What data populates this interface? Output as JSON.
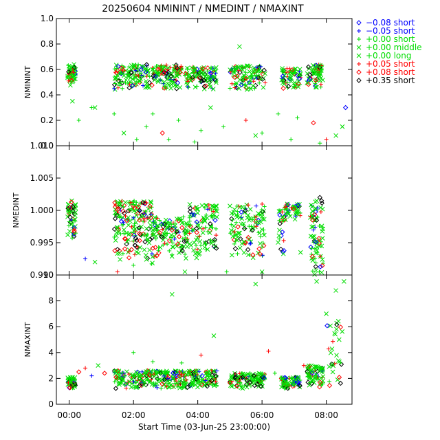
{
  "chart_data": {
    "type": "scatter",
    "title": "20250604 NMININT / NMEDINT / NMAXINT",
    "xlabel": "Start Time (03-Jun-25 23:00:00)",
    "x_unit": "hours relative to 23:00:00 on 03-Jun-25",
    "xlim": [
      -0.4,
      8.8
    ],
    "xticks": [
      {
        "x": 0,
        "label": "00:00"
      },
      {
        "x": 2,
        "label": "02:00"
      },
      {
        "x": 4,
        "label": "04:00"
      },
      {
        "x": 6,
        "label": "06:00"
      },
      {
        "x": 8,
        "label": "08:00"
      }
    ],
    "legend_position": "right",
    "series": [
      {
        "name": "−0.08 short",
        "color": "#0000ff",
        "symbol": "diamond"
      },
      {
        "name": "−0.05 short",
        "color": "#0000ff",
        "symbol": "plus"
      },
      {
        "name": "+0.00 short",
        "color": "#00dd00",
        "symbol": "plus"
      },
      {
        "name": "+0.00 middle",
        "color": "#00dd00",
        "symbol": "cross"
      },
      {
        "name": "+0.00 long",
        "color": "#00dd00",
        "symbol": "cross"
      },
      {
        "name": "+0.05 short",
        "color": "#ff0000",
        "symbol": "plus"
      },
      {
        "name": "+0.08 short",
        "color": "#ff0000",
        "symbol": "diamond"
      },
      {
        "name": "+0.35 short",
        "color": "#000000",
        "symbol": "diamond"
      }
    ],
    "panels": [
      {
        "ylabel": "NMININT",
        "ylim": [
          0.0,
          1.0
        ],
        "yticks": [
          {
            "v": 0.0,
            "label": "0.0"
          },
          {
            "v": 0.2,
            "label": "0.2"
          },
          {
            "v": 0.4,
            "label": "0.4"
          },
          {
            "v": 0.6,
            "label": "0.6"
          },
          {
            "v": 0.8,
            "label": "0.8"
          },
          {
            "v": 1.0,
            "label": "1.0"
          }
        ],
        "clusters": [
          {
            "x": [
              -0.05,
              0.2
            ],
            "y": [
              0.47,
              0.64
            ],
            "n": 55
          },
          {
            "x": [
              1.4,
              3.5
            ],
            "y": [
              0.44,
              0.64
            ],
            "n": 240
          },
          {
            "x": [
              3.6,
              4.6
            ],
            "y": [
              0.44,
              0.62
            ],
            "n": 110
          },
          {
            "x": [
              5.0,
              6.1
            ],
            "y": [
              0.44,
              0.63
            ],
            "n": 120
          },
          {
            "x": [
              6.6,
              7.2
            ],
            "y": [
              0.45,
              0.61
            ],
            "n": 70
          },
          {
            "x": [
              7.4,
              7.9
            ],
            "y": [
              0.45,
              0.64
            ],
            "n": 70
          }
        ],
        "outliers": [
          [
            0.1,
            0.35
          ],
          [
            0.3,
            0.2
          ],
          [
            0.7,
            0.3
          ],
          [
            0.8,
            0.3
          ],
          [
            1.4,
            0.25
          ],
          [
            1.7,
            0.1
          ],
          [
            2.1,
            0.05
          ],
          [
            2.4,
            0.15
          ],
          [
            2.6,
            0.25
          ],
          [
            2.9,
            0.1
          ],
          [
            3.1,
            0.05
          ],
          [
            3.4,
            0.2
          ],
          [
            3.9,
            0.03
          ],
          [
            4.1,
            0.12
          ],
          [
            4.4,
            0.3
          ],
          [
            4.8,
            0.15
          ],
          [
            5.3,
            0.78
          ],
          [
            5.5,
            0.2
          ],
          [
            5.8,
            0.08
          ],
          [
            6.0,
            0.1
          ],
          [
            6.5,
            0.25
          ],
          [
            6.9,
            0.05
          ],
          [
            7.1,
            0.22
          ],
          [
            7.6,
            0.18
          ],
          [
            7.8,
            0.02
          ],
          [
            8.0,
            0.05
          ],
          [
            8.3,
            0.08
          ],
          [
            8.5,
            0.15
          ],
          [
            8.6,
            0.3
          ]
        ]
      },
      {
        "ylabel": "NMEDINT",
        "ylim": [
          0.99,
          1.01
        ],
        "yticks": [
          {
            "v": 0.99,
            "label": "0.990"
          },
          {
            "v": 0.995,
            "label": "0.995"
          },
          {
            "v": 1.0,
            "label": "1.000"
          },
          {
            "v": 1.005,
            "label": "1.005"
          },
          {
            "v": 1.01,
            "label": "1.010"
          }
        ],
        "clusters": [
          {
            "x": [
              -0.05,
              0.2
            ],
            "y": [
              0.9955,
              1.0015
            ],
            "n": 55
          },
          {
            "x": [
              1.4,
              2.6
            ],
            "y": [
              0.9915,
              1.0015
            ],
            "n": 200
          },
          {
            "x": [
              2.6,
              3.7
            ],
            "y": [
              0.9925,
              0.999
            ],
            "n": 130
          },
          {
            "x": [
              3.7,
              4.6
            ],
            "y": [
              0.9925,
              1.001
            ],
            "n": 110
          },
          {
            "x": [
              5.0,
              6.1
            ],
            "y": [
              0.992,
              1.001
            ],
            "n": 120
          },
          {
            "x": [
              6.5,
              6.7
            ],
            "y": [
              0.993,
              1.0
            ],
            "n": 25
          },
          {
            "x": [
              6.7,
              7.2
            ],
            "y": [
              0.9985,
              1.001
            ],
            "n": 45
          },
          {
            "x": [
              7.5,
              7.9
            ],
            "y": [
              0.99,
              1.0015
            ],
            "n": 80
          }
        ],
        "outliers": [
          [
            0.5,
            0.9925
          ],
          [
            0.8,
            0.992
          ],
          [
            1.5,
            0.9905
          ],
          [
            2.0,
            0.9915
          ],
          [
            3.6,
            0.9905
          ],
          [
            4.9,
            0.9905
          ],
          [
            6.0,
            0.9905
          ],
          [
            7.2,
            0.9935
          ],
          [
            7.8,
            1.002
          ]
        ]
      },
      {
        "ylabel": "NMAXINT",
        "ylim": [
          0,
          10
        ],
        "yticks": [
          {
            "v": 0,
            "label": "0"
          },
          {
            "v": 2,
            "label": "2"
          },
          {
            "v": 4,
            "label": "4"
          },
          {
            "v": 6,
            "label": "6"
          },
          {
            "v": 8,
            "label": "8"
          },
          {
            "v": 10,
            "label": "10"
          }
        ],
        "clusters": [
          {
            "x": [
              -0.05,
              0.2
            ],
            "y": [
              1.2,
              2.1
            ],
            "n": 55
          },
          {
            "x": [
              1.4,
              3.6
            ],
            "y": [
              1.2,
              2.6
            ],
            "n": 240
          },
          {
            "x": [
              3.6,
              4.6
            ],
            "y": [
              1.3,
              2.6
            ],
            "n": 110
          },
          {
            "x": [
              5.0,
              6.1
            ],
            "y": [
              1.2,
              2.4
            ],
            "n": 120
          },
          {
            "x": [
              6.6,
              7.2
            ],
            "y": [
              1.2,
              2.1
            ],
            "n": 70
          },
          {
            "x": [
              7.4,
              7.9
            ],
            "y": [
              1.2,
              3.0
            ],
            "n": 70
          },
          {
            "x": [
              8.0,
              8.5
            ],
            "y": [
              1.0,
              6.5
            ],
            "n": 30
          }
        ],
        "outliers": [
          [
            0.3,
            2.5
          ],
          [
            0.5,
            2.8
          ],
          [
            0.7,
            2.2
          ],
          [
            0.9,
            3.0
          ],
          [
            1.1,
            2.4
          ],
          [
            2.0,
            4.0
          ],
          [
            2.6,
            3.3
          ],
          [
            3.2,
            8.5
          ],
          [
            3.5,
            3.2
          ],
          [
            4.1,
            3.8
          ],
          [
            4.5,
            5.3
          ],
          [
            5.8,
            9.3
          ],
          [
            6.2,
            4.1
          ],
          [
            6.4,
            2.4
          ],
          [
            7.3,
            3.0
          ],
          [
            7.7,
            9.5
          ],
          [
            8.0,
            7.0
          ],
          [
            8.3,
            8.8
          ],
          [
            8.55,
            9.5
          ],
          [
            8.4,
            5.0
          ]
        ]
      }
    ]
  }
}
